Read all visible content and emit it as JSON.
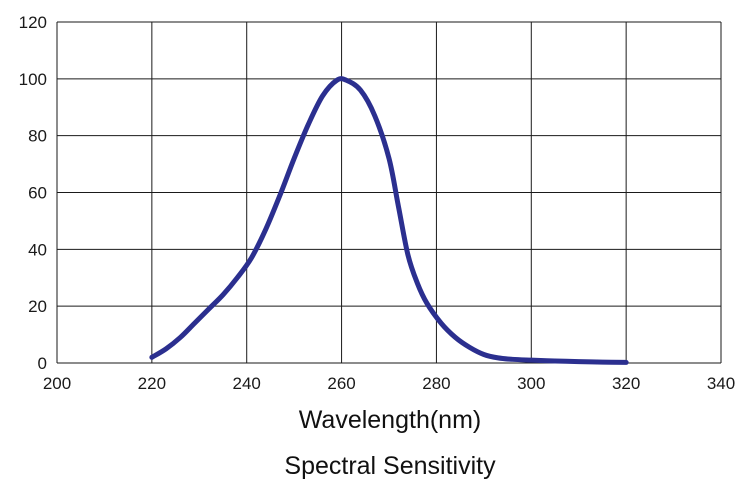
{
  "chart_data": {
    "type": "line",
    "title": "Spectral Sensitivity",
    "xlabel": "Wavelength(nm)",
    "ylabel": "",
    "xlim": [
      200,
      340
    ],
    "ylim": [
      0,
      120
    ],
    "x_ticks": [
      200,
      220,
      240,
      260,
      280,
      300,
      320,
      340
    ],
    "y_ticks": [
      0,
      20,
      40,
      60,
      80,
      100,
      120
    ],
    "x_tick_labels": [
      "200",
      "220",
      "240",
      "260",
      "280",
      "300",
      "320",
      "340"
    ],
    "y_tick_labels": [
      "0",
      "20",
      "40",
      "60",
      "80",
      "100",
      "120"
    ],
    "grid": true,
    "colors": {
      "line": "#2b2f8f",
      "grid": "#1a1a1a"
    },
    "series": [
      {
        "x": [
          220,
          223,
          226,
          229,
          232,
          235,
          238,
          241,
          244,
          247,
          250,
          253,
          256,
          259,
          261,
          264,
          267,
          270,
          272,
          274,
          276,
          278,
          281,
          284,
          287,
          290,
          293,
          296,
          300,
          305,
          310,
          315,
          320
        ],
        "values": [
          2,
          5,
          9,
          14,
          19,
          24,
          30,
          37,
          47,
          59,
          72,
          84,
          94,
          99.5,
          99.5,
          96,
          87,
          72,
          55,
          38,
          28,
          21,
          14,
          9,
          5.5,
          3,
          1.8,
          1.3,
          1.0,
          0.7,
          0.5,
          0.3,
          0.2
        ]
      }
    ]
  }
}
